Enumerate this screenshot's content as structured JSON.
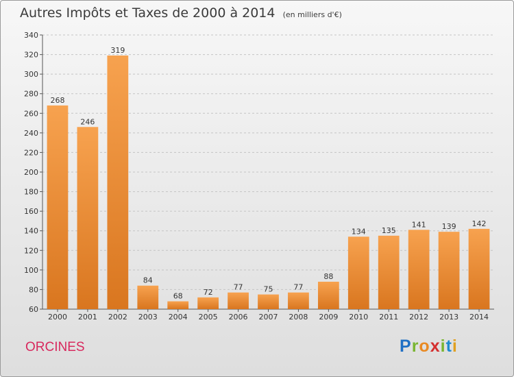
{
  "header": {
    "title": "Autres Impôts et Taxes de 2000 à 2014",
    "subtitle": "(en milliers d'€)"
  },
  "footer": {
    "commune": "ORCINES",
    "logo": "Proxiti"
  },
  "colors": {
    "bar_light": "#f7a24f",
    "bar_dark": "#d9761f",
    "commune": "#d8285d"
  },
  "chart_data": {
    "type": "bar",
    "title": "Autres Impôts et Taxes de 2000 à 2014",
    "subtitle": "(en milliers d'€)",
    "categories": [
      "2000",
      "2001",
      "2002",
      "2003",
      "2004",
      "2005",
      "2006",
      "2007",
      "2008",
      "2009",
      "2010",
      "2011",
      "2012",
      "2013",
      "2014"
    ],
    "values": [
      268,
      246,
      319,
      84,
      68,
      72,
      77,
      75,
      77,
      88,
      134,
      135,
      141,
      139,
      142
    ],
    "ylim": [
      60,
      340
    ],
    "yticks": [
      60,
      80,
      100,
      120,
      140,
      160,
      180,
      200,
      220,
      240,
      260,
      280,
      300,
      320,
      340
    ],
    "grid": true,
    "data_labels": true
  }
}
